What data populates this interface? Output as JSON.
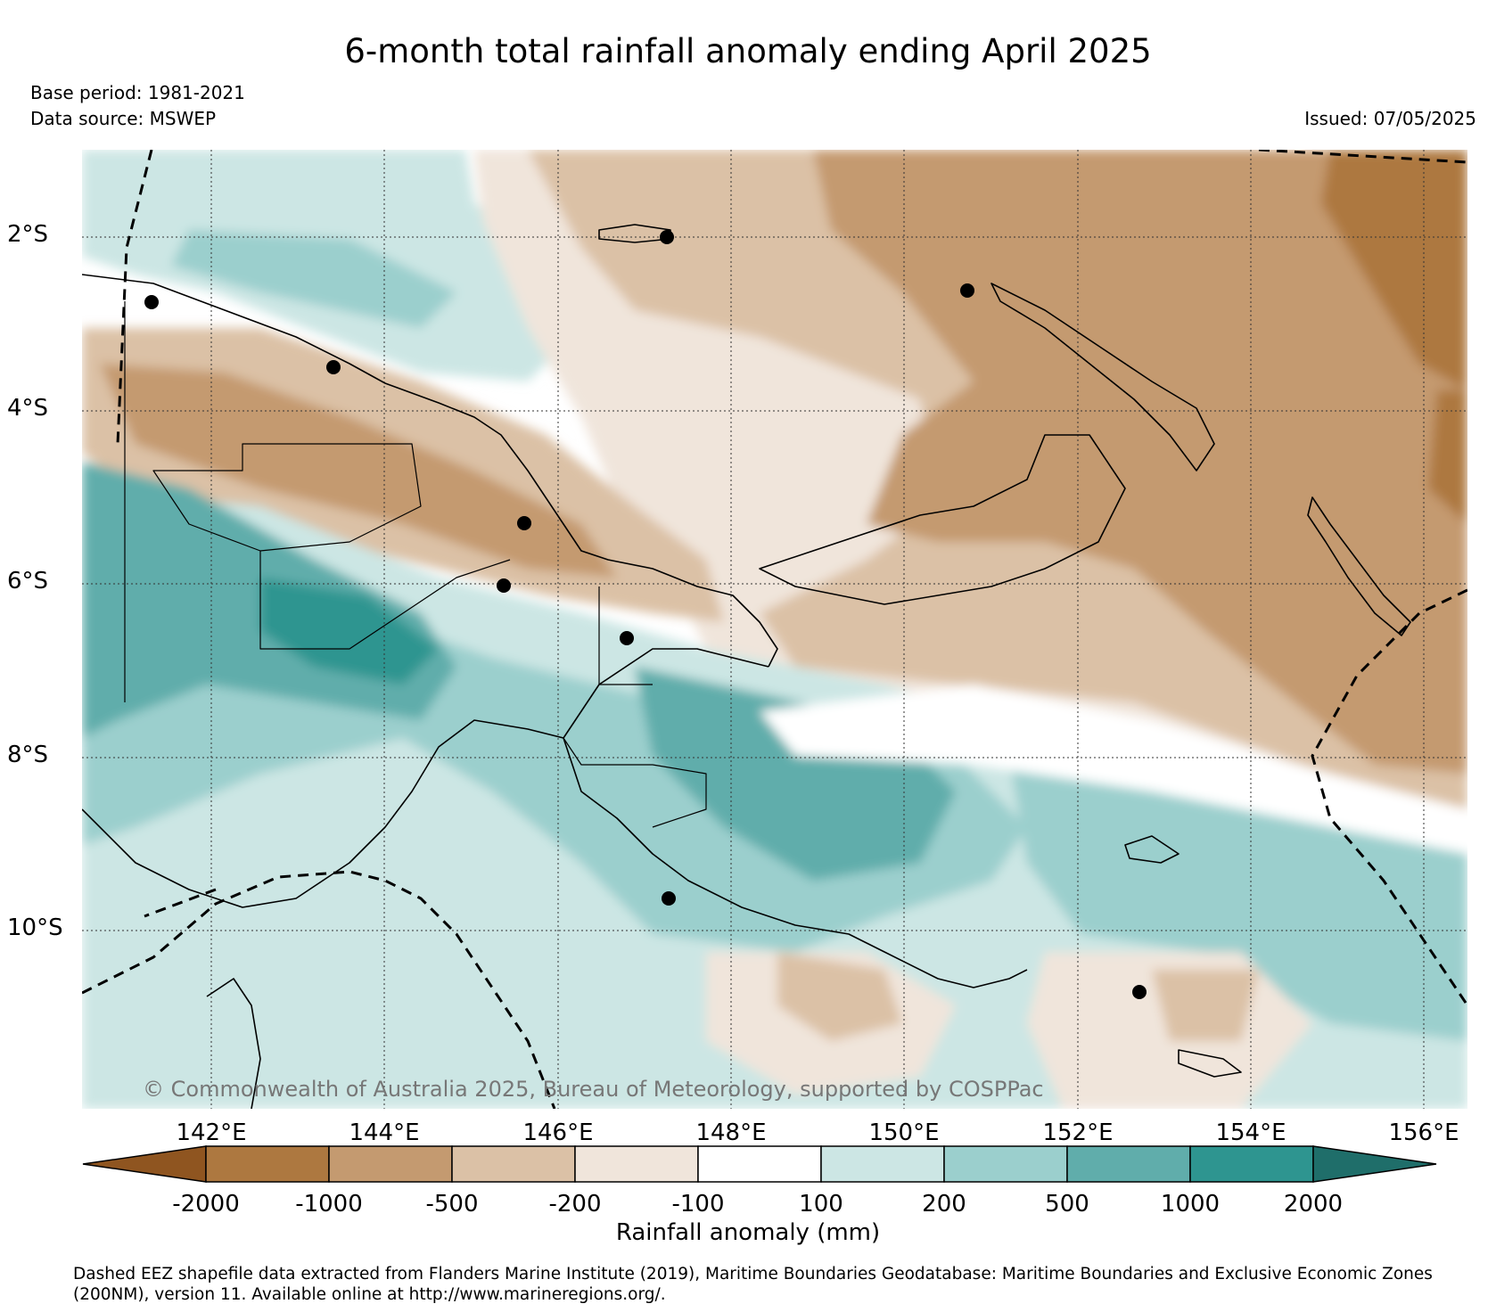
{
  "header": {
    "title": "6-month total rainfall anomaly ending April 2025",
    "base_period": "Base period: 1981-2021",
    "data_source": "Data source: MSWEP",
    "issued": "Issued: 07/05/2025"
  },
  "map": {
    "lat_labels": [
      "2°S",
      "4°S",
      "6°S",
      "8°S",
      "10°S"
    ],
    "lon_labels": [
      "142°E",
      "144°E",
      "146°E",
      "148°E",
      "150°E",
      "152°E",
      "154°E",
      "156°E"
    ],
    "copyright": "© Commonwealth of Australia 2025, Bureau of Meteorology, supported by COSPPac"
  },
  "legend": {
    "tick_labels": [
      "-2000",
      "-1000",
      "-500",
      "-200",
      "-100",
      "100",
      "200",
      "500",
      "1000",
      "2000"
    ],
    "label": "Rainfall anomaly (mm)",
    "colors": [
      "#8f5520",
      "#ad7840",
      "#c49a70",
      "#dbc1a6",
      "#f0e5db",
      "#ffffff",
      "#cce6e4",
      "#9bcfcd",
      "#60adab",
      "#2e9590",
      "#1f6e6a"
    ]
  },
  "footnote": {
    "line1": "Dashed EEZ shapefile data extracted from Flanders Marine Institute (2019), Maritime Boundaries Geodatabase: Maritime Boundaries and Exclusive Economic Zones",
    "line2": "(200NM), version 11. Available online at http://www.marineregions.org/."
  }
}
